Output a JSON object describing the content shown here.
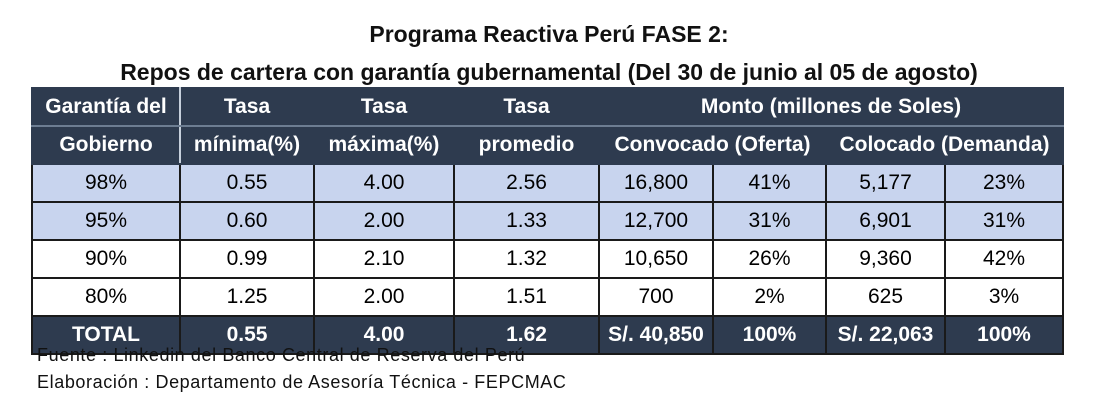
{
  "title_line1": "Programa Reactiva Perú FASE 2:",
  "title_line2": "Repos de cartera con garantía gubernamental (Del 30 de junio al 05 de agosto)",
  "header": {
    "garantia_l1": "Garantía del",
    "garantia_l2": "Gobierno",
    "tasa_min_l1": "Tasa",
    "tasa_min_l2": "mínima(%)",
    "tasa_max_l1": "Tasa",
    "tasa_max_l2": "máxima(%)",
    "tasa_prom_l1": "Tasa",
    "tasa_prom_l2": "promedio",
    "monto": "Monto (millones de Soles)",
    "convocado": "Convocado (Oferta)",
    "colocado": "Colocado (Demanda)"
  },
  "rows": [
    {
      "garantia": "98%",
      "min": "0.55",
      "max": "4.00",
      "prom": "2.56",
      "conv": "16,800",
      "conv_pct": "41%",
      "col": "5,177",
      "col_pct": "23%"
    },
    {
      "garantia": "95%",
      "min": "0.60",
      "max": "2.00",
      "prom": "1.33",
      "conv": "12,700",
      "conv_pct": "31%",
      "col": "6,901",
      "col_pct": "31%"
    },
    {
      "garantia": "90%",
      "min": "0.99",
      "max": "2.10",
      "prom": "1.32",
      "conv": "10,650",
      "conv_pct": "26%",
      "col": "9,360",
      "col_pct": "42%"
    },
    {
      "garantia": "80%",
      "min": "1.25",
      "max": "2.00",
      "prom": "1.51",
      "conv": "700",
      "conv_pct": "2%",
      "col": "625",
      "col_pct": "3%"
    }
  ],
  "total": {
    "label": "TOTAL",
    "min": "0.55",
    "max": "4.00",
    "prom": "1.62",
    "conv": "S/. 40,850",
    "conv_pct": "100%",
    "col": "S/. 22,063",
    "col_pct": "100%"
  },
  "source": "Fuente : Linkedin del Banco Central de Reserva del Perú",
  "author": "Elaboración : Departamento de Asesoría Técnica - FEPCMAC",
  "colors": {
    "header_bg": "#2e3b4f",
    "highlight_row": "#c8d4ee"
  }
}
